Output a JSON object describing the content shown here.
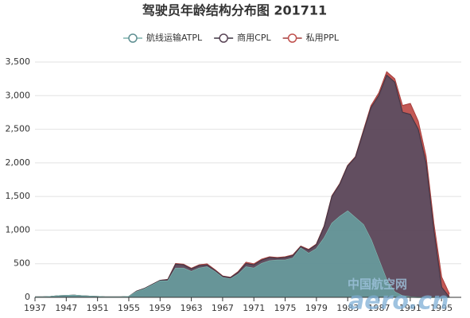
{
  "chart_data": {
    "type": "stacked_area",
    "title": "驾驶员年龄结构分布图 201711",
    "categories": [
      "1937",
      null,
      null,
      null,
      "1947",
      null,
      null,
      null,
      "1951",
      null,
      null,
      null,
      "1955",
      null,
      null,
      null,
      "1959",
      null,
      null,
      null,
      "1963",
      null,
      null,
      null,
      "1967",
      null,
      null,
      null,
      "1971",
      null,
      null,
      null,
      "1975",
      null,
      null,
      null,
      "1979",
      null,
      null,
      null,
      "1983",
      null,
      null,
      null,
      "1987",
      null,
      null,
      null,
      "1991",
      null,
      null,
      null,
      "1995",
      null
    ],
    "series": [
      {
        "name": "航线运输ATPL",
        "color": "#5f8f92",
        "line": "#7fb3ad",
        "values": [
          5,
          5,
          10,
          20,
          25,
          30,
          20,
          15,
          10,
          5,
          5,
          5,
          10,
          80,
          120,
          180,
          240,
          240,
          430,
          430,
          380,
          430,
          450,
          380,
          290,
          270,
          340,
          450,
          430,
          500,
          540,
          550,
          550,
          580,
          730,
          650,
          720,
          880,
          1100,
          1200,
          1280,
          1180,
          1080,
          850,
          550,
          250,
          80,
          20,
          5,
          0,
          0,
          0,
          0,
          0
        ]
      },
      {
        "name": "商用CPL",
        "color": "#5a4557",
        "line": "#3d3340",
        "values": [
          0,
          0,
          0,
          0,
          0,
          0,
          0,
          0,
          0,
          0,
          0,
          0,
          0,
          10,
          10,
          10,
          10,
          20,
          60,
          50,
          40,
          40,
          30,
          20,
          20,
          20,
          30,
          50,
          50,
          50,
          50,
          30,
          40,
          40,
          20,
          50,
          60,
          170,
          400,
          480,
          670,
          900,
          1370,
          1970,
          2450,
          3050,
          3120,
          2730,
          2715,
          2500,
          2000,
          1000,
          150,
          0
        ]
      },
      {
        "name": "私用PPL",
        "color": "#c0504d",
        "line": "#a33c3a",
        "values": [
          0,
          0,
          0,
          0,
          0,
          0,
          0,
          0,
          0,
          0,
          0,
          0,
          0,
          0,
          0,
          0,
          0,
          5,
          10,
          10,
          10,
          10,
          15,
          10,
          5,
          5,
          10,
          20,
          15,
          15,
          10,
          10,
          10,
          10,
          10,
          10,
          10,
          10,
          10,
          10,
          10,
          10,
          20,
          30,
          40,
          50,
          50,
          100,
          160,
          120,
          100,
          100,
          150,
          50
        ]
      }
    ],
    "ylim": [
      0,
      3500
    ],
    "yticks": [
      0,
      500,
      {
        "value": 1000,
        "label": "1,000"
      },
      {
        "value": 1500,
        "label": "1,500"
      },
      {
        "value": 2000,
        "label": "2,000"
      },
      {
        "value": 2500,
        "label": "2,500"
      },
      {
        "value": 3000,
        "label": "3,000"
      },
      {
        "value": 3500,
        "label": "3,500"
      }
    ],
    "grid": true,
    "watermark": [
      "中国航空网",
      "aero.cn"
    ]
  }
}
